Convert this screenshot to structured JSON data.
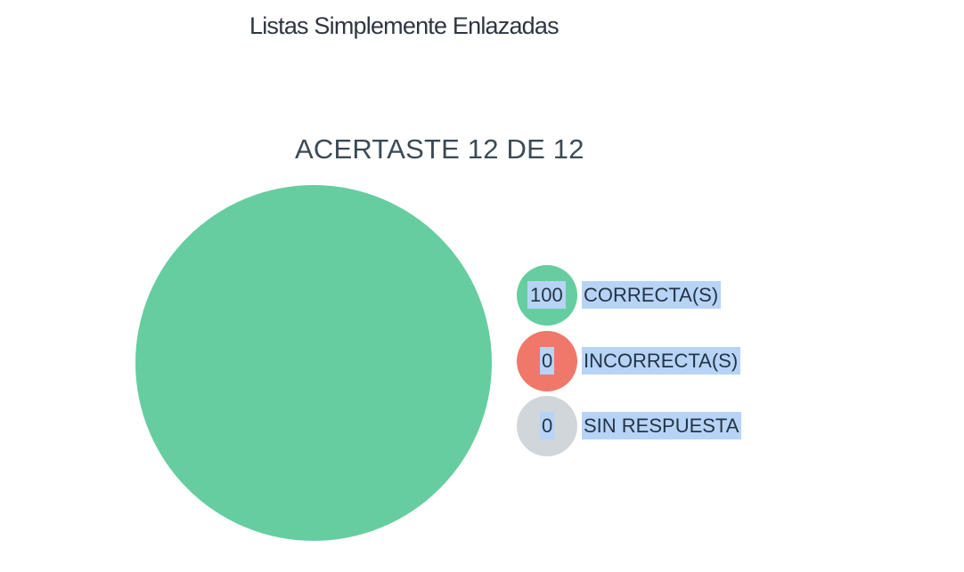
{
  "page": {
    "title": "Listas Simplemente Enlazadas"
  },
  "result": {
    "heading": "ACERTASTE 12 DE 12"
  },
  "chart_data": {
    "type": "pie",
    "categories": [
      "CORRECTA(S)",
      "INCORRECTA(S)",
      "SIN RESPUESTA"
    ],
    "values": [
      100,
      0,
      0
    ],
    "colors": [
      "#66cda0",
      "#f0786a",
      "#d1d6da"
    ],
    "legend": "right"
  },
  "legend": [
    {
      "value": "100",
      "label": "CORRECTA(S)",
      "color": "#66cda0"
    },
    {
      "value": "0",
      "label": "INCORRECTA(S)",
      "color": "#f0786a"
    },
    {
      "value": "0",
      "label": "SIN RESPUESTA",
      "color": "#d1d6da"
    }
  ]
}
